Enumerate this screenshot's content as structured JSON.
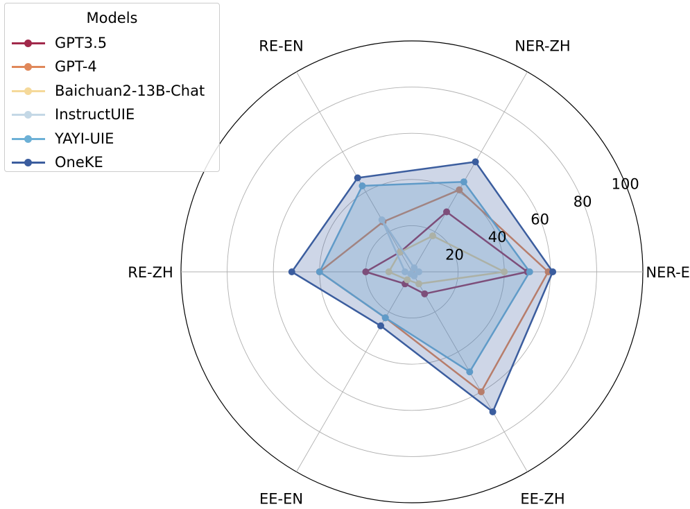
{
  "chart_data": {
    "type": "radar",
    "axes": [
      "NER-EN",
      "NER-ZH",
      "RE-EN",
      "RE-ZH",
      "EE-EN",
      "EE-ZH"
    ],
    "radial_ticks": [
      "20",
      "40",
      "60",
      "80",
      "100"
    ],
    "radial_range": [
      0,
      100
    ],
    "grid": true,
    "legend_title": "Models",
    "legend_position": "top-left",
    "series": [
      {
        "name": "GPT3.5",
        "color": "#a1294b",
        "fill": false,
        "values": [
          50,
          30,
          10,
          20,
          6,
          11
        ]
      },
      {
        "name": "GPT-4",
        "color": "#e0885a",
        "fill": false,
        "values": [
          59,
          41,
          25,
          40,
          23,
          60
        ]
      },
      {
        "name": "Baichuan2-13B-Chat",
        "color": "#f5d99a",
        "fill": false,
        "values": [
          40,
          18,
          10,
          10,
          4,
          6
        ]
      },
      {
        "name": "InstructUIE",
        "color": "#c4d8e6",
        "fill": false,
        "values": [
          3,
          2,
          26,
          3,
          1,
          2
        ]
      },
      {
        "name": "YAYI-UIE",
        "color": "#6cb0d6",
        "fill": true,
        "values": [
          51,
          45,
          43,
          40,
          23,
          50
        ]
      },
      {
        "name": "OneKE",
        "color": "#3b5d9e",
        "fill": true,
        "values": [
          61,
          55,
          47,
          52,
          27,
          70
        ]
      }
    ]
  }
}
